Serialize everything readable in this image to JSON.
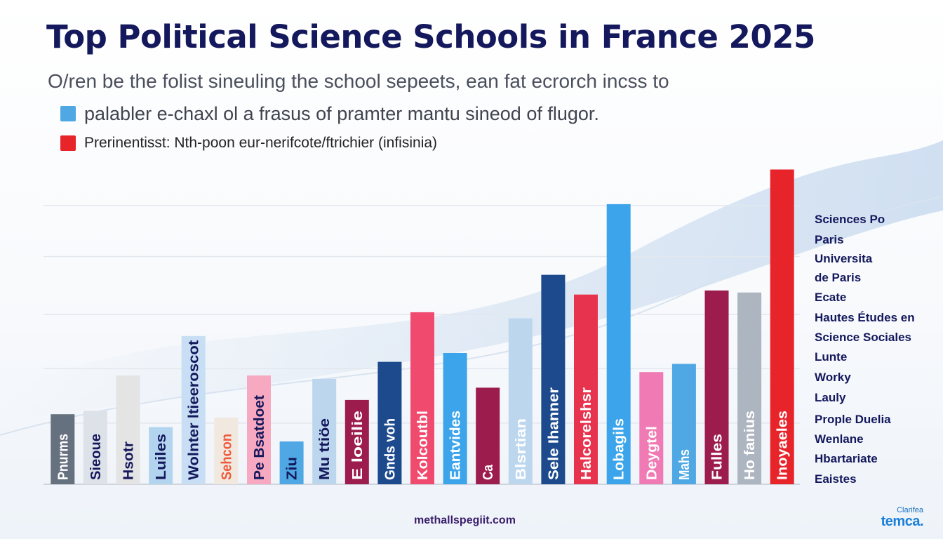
{
  "title": "Top Political Science Schools in France 2025",
  "subtitle": "O/ren be the folist sineuling the school sepeets, ean fat ecrorch incss to",
  "legend": [
    {
      "label": "palabler e-chaxl ol a frasus of pramter mantu sineod of flugor.",
      "color": "#4fa8e3"
    },
    {
      "label": "Prerinentisst: Nth-poon eur-nerifcote/ftrichier (infisinia)",
      "color": "#e8242b"
    }
  ],
  "schools": [
    "Sciences Po",
    "Paris",
    "Universita",
    "de Paris",
    "Ecate",
    "Hautes Études en",
    "Science Sociales",
    "Lunte",
    "Worky",
    "Lauly",
    "Prople Duelia",
    "Wenlane",
    "Hbartariate",
    "Eaistes"
  ],
  "source": "methallspegiit.com",
  "brand": {
    "small": "Clarifea",
    "big": "temca."
  },
  "chart_data": {
    "type": "bar",
    "categories": [
      "Pnurms",
      "Sieoue",
      "Hsotr",
      "Luiles",
      "Wolnter ltieeroscot",
      "Sehcon",
      "Pe Bsatdoet",
      "Ziu",
      "Mu ttiöe",
      "E loeilie",
      "Gnds voh",
      "Kolcoutbl",
      "Eantvides",
      "Ca",
      "Blsrtian",
      "Sele Ihanner",
      "Halcorelshsr",
      "Lobagils",
      "Deygtel",
      "Mahs",
      "Fulles",
      "Ho fanius",
      "Inoyaeles"
    ],
    "values": [
      103,
      108,
      160,
      84,
      218,
      98,
      160,
      63,
      155,
      124,
      180,
      253,
      193,
      142,
      244,
      308,
      279,
      412,
      165,
      177,
      285,
      282,
      463
    ],
    "colors": [
      "#66717f",
      "#dde2e8",
      "#e4e4e4",
      "#b3d4ee",
      "#c7def4",
      "#f1e9e0",
      "#f6a9c0",
      "#4fa8e3",
      "#bcd6ee",
      "#9c1c4d",
      "#1d4a8c",
      "#f04b6e",
      "#3ba4ea",
      "#9c1c4d",
      "#bcd6ee",
      "#1d4a8c",
      "#e8334f",
      "#3ba4ea",
      "#f07ab4",
      "#4fa8e3",
      "#9c1c4d",
      "#adb5c0",
      "#e8242b"
    ],
    "label_colors": [
      "#ffffff",
      "#14185c",
      "#14185c",
      "#14185c",
      "#14185c",
      "#f05a3c",
      "#14185c",
      "#14185c",
      "#14185c",
      "#ffffff",
      "#ffffff",
      "#ffffff",
      "#ffffff",
      "#ffffff",
      "#ffffff",
      "#ffffff",
      "#ffffff",
      "#ffffff",
      "#ffffff",
      "#ffffff",
      "#ffffff",
      "#ffffff",
      "#ffffff"
    ],
    "ylim": [
      0,
      480
    ],
    "grid": true,
    "xlabel": "",
    "ylabel": ""
  }
}
